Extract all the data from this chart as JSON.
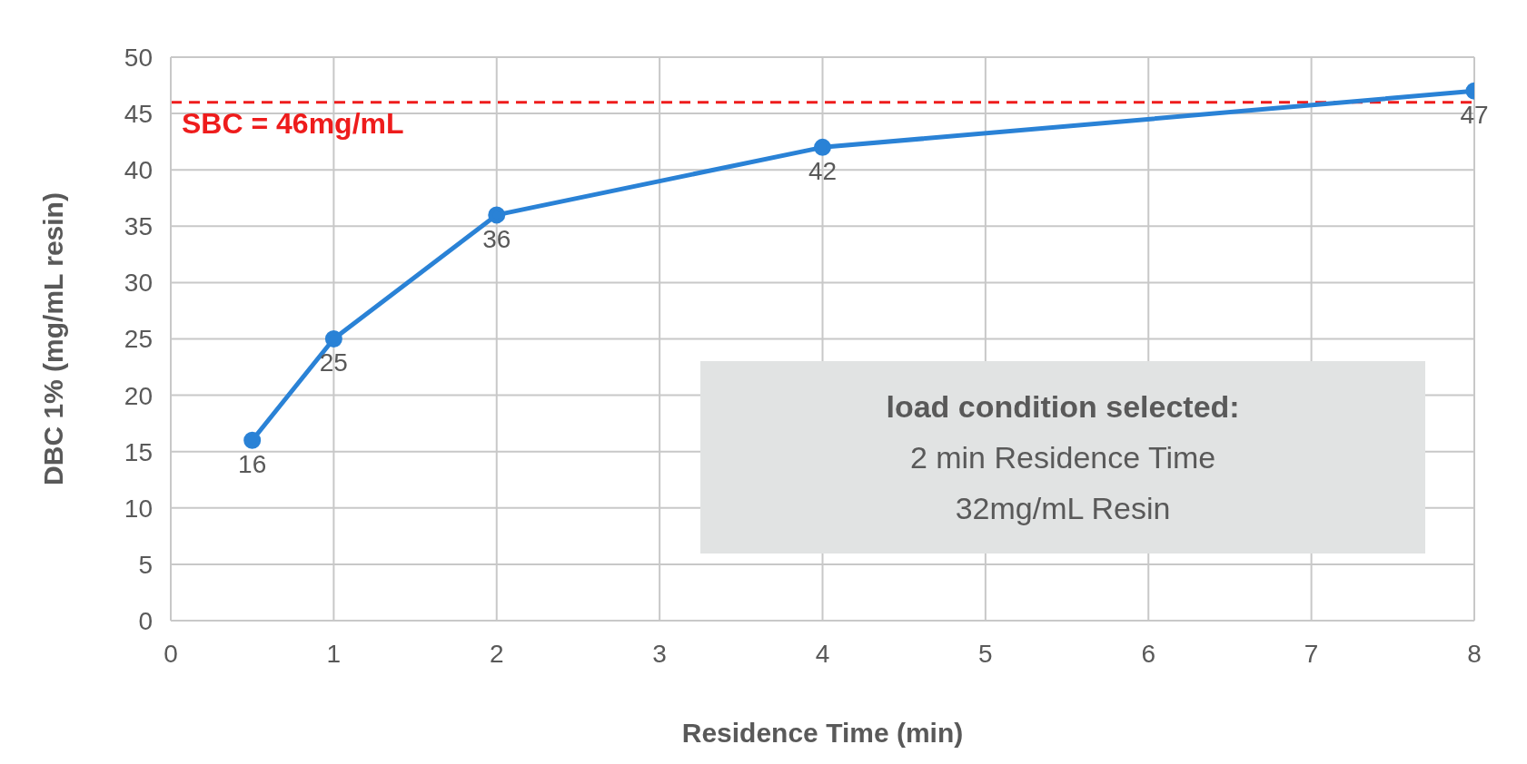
{
  "chart_data": {
    "type": "line",
    "xlabel": "Residence Time (min)",
    "ylabel": "DBC 1%  (mg/mL resin)",
    "x": [
      0.5,
      1,
      2,
      4,
      8
    ],
    "series": [
      {
        "color": "#2a82d6",
        "values": [
          16,
          25,
          36,
          42,
          47
        ]
      }
    ],
    "xlim": [
      0,
      8
    ],
    "xticks": [
      0,
      1,
      2,
      3,
      4,
      5,
      6,
      7,
      8
    ],
    "ylim": [
      0,
      50
    ],
    "yticks": [
      0,
      5,
      10,
      15,
      20,
      25,
      30,
      35,
      40,
      45,
      50
    ],
    "grid": true,
    "marker": "circle",
    "line_style": "solid",
    "data_labels": true,
    "ref_lines": [
      {
        "axis": "y",
        "value": 46,
        "label": "SBC = 46mg/mL",
        "color": "#ee1c1c",
        "line_style": "dashed"
      }
    ],
    "annotations": [
      "load condition selected:",
      "2 min Residence Time",
      "32mg/mL Resin"
    ]
  }
}
